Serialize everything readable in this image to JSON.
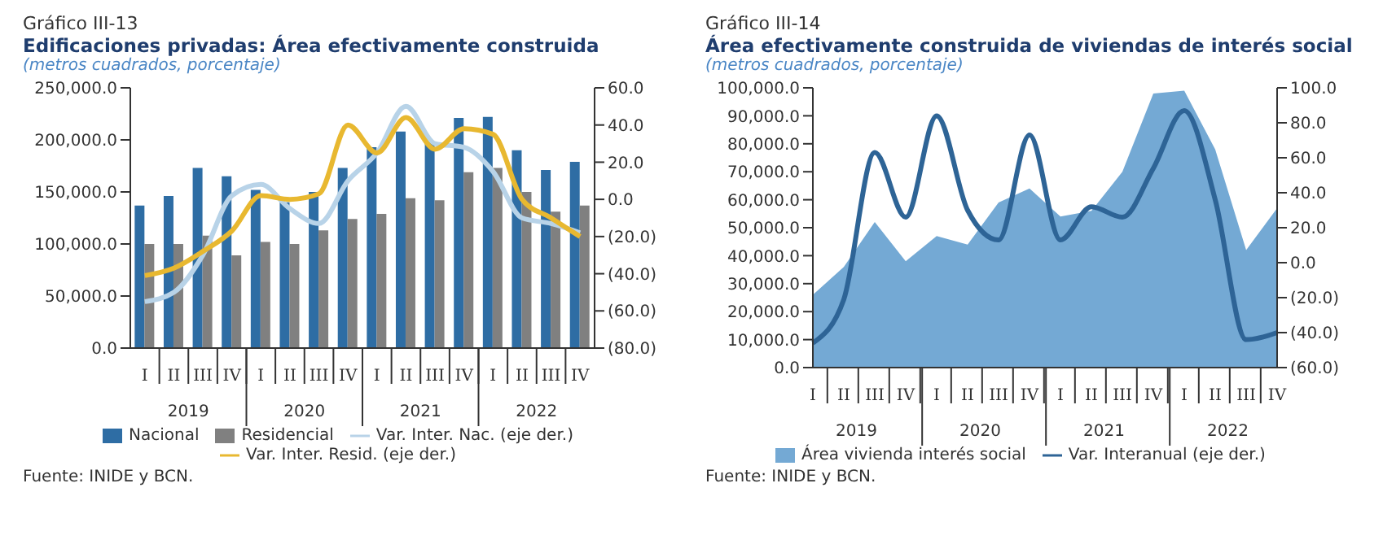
{
  "chart_data": [
    {
      "type": "bar",
      "title": "Edificaciones privadas: Área efectivamente construida",
      "subtitle": "(metros cuadrados, porcentaje)",
      "annotations": [
        "Gráfico III-13",
        "2019",
        "2020",
        "2021",
        "2022",
        "Fuente: INIDE y BCN."
      ],
      "categories": [
        "I",
        "II",
        "III",
        "IV",
        "I",
        "II",
        "III",
        "IV",
        "I",
        "II",
        "III",
        "IV",
        "I",
        "II",
        "III",
        "IV"
      ],
      "series": [
        {
          "name": "Nacional",
          "color": "#2e6da4",
          "values": [
            137000,
            146000,
            173000,
            165000,
            152000,
            140000,
            150000,
            173000,
            193000,
            208000,
            198000,
            221000,
            222000,
            190000,
            171000,
            179000
          ]
        },
        {
          "name": "Residencial",
          "color": "#808080",
          "values": [
            100000,
            100000,
            108000,
            89000,
            102000,
            100000,
            113000,
            124000,
            129000,
            144000,
            142000,
            169000,
            173000,
            150000,
            131000,
            137000
          ]
        },
        {
          "name": "Var. Inter. Nac. (eje der.)",
          "type": "line",
          "axis": "y2",
          "color": "#b8d3e8",
          "values": [
            -55,
            -50,
            -30,
            2,
            8,
            -5,
            -13,
            10,
            25,
            50,
            30,
            28,
            15,
            -10,
            -13,
            -18
          ]
        },
        {
          "name": "Var. Inter. Resid. (eje der.)",
          "type": "line",
          "axis": "y2",
          "color": "#e8b830",
          "values": [
            -41,
            -37,
            -28,
            -17,
            2,
            0,
            3,
            40,
            25,
            44,
            27,
            38,
            35,
            0,
            -10,
            -20
          ]
        }
      ],
      "ylim": [
        0,
        250000
      ],
      "yticks": [
        {
          "value": 0,
          "label": "0.0"
        },
        {
          "value": 50000,
          "label": "50,000.0"
        },
        {
          "value": 100000,
          "label": "100,000.0"
        },
        {
          "value": 150000,
          "label": "150,000.0"
        },
        {
          "value": 200000,
          "label": "200,000.0"
        },
        {
          "value": 250000,
          "label": "250,000.0"
        }
      ],
      "y2lim": [
        -80,
        60
      ],
      "y2ticks": [
        {
          "value": -80,
          "label": "(80.0)"
        },
        {
          "value": -60,
          "label": "(60.0)"
        },
        {
          "value": -40,
          "label": "(40.0)"
        },
        {
          "value": -20,
          "label": "(20.0)"
        },
        {
          "value": 0,
          "label": "0.0"
        },
        {
          "value": 20,
          "label": "20.0"
        },
        {
          "value": 40,
          "label": "40.0"
        },
        {
          "value": 60,
          "label": "60.0"
        }
      ],
      "grid": false,
      "legend": "bottom",
      "marker": "none"
    },
    {
      "type": "area",
      "title": "Área efectivamente construida de viviendas de interés social",
      "subtitle": "(metros cuadrados, porcentaje)",
      "annotations": [
        "Gráfico III-14",
        "2019",
        "2020",
        "2021",
        "2022",
        "Fuente: INIDE y BCN."
      ],
      "categories": [
        "I",
        "II",
        "III",
        "IV",
        "I",
        "II",
        "III",
        "IV",
        "I",
        "II",
        "III",
        "IV",
        "I",
        "II",
        "III",
        "IV"
      ],
      "series": [
        {
          "name": "Área vivienda interés social",
          "color": "#74a9d4",
          "values": [
            26000,
            36000,
            52000,
            38000,
            47000,
            44000,
            59000,
            64000,
            54000,
            56000,
            70000,
            98000,
            99000,
            78000,
            42000,
            57000
          ]
        },
        {
          "name": "Var. Interanual (eje der.)",
          "type": "line",
          "axis": "y2",
          "color": "#2e6496",
          "values": [
            -46,
            -21,
            63,
            26,
            84,
            30,
            13,
            73,
            13,
            32,
            26,
            54,
            87,
            36,
            -44,
            -40
          ]
        }
      ],
      "ylim": [
        0,
        100000
      ],
      "yticks": [
        {
          "value": 0,
          "label": "0.0"
        },
        {
          "value": 10000,
          "label": "10,000.0"
        },
        {
          "value": 20000,
          "label": "20,000.0"
        },
        {
          "value": 30000,
          "label": "30,000.0"
        },
        {
          "value": 40000,
          "label": "40,000.0"
        },
        {
          "value": 50000,
          "label": "50,000.0"
        },
        {
          "value": 60000,
          "label": "60,000.0"
        },
        {
          "value": 70000,
          "label": "70,000.0"
        },
        {
          "value": 80000,
          "label": "80,000.0"
        },
        {
          "value": 90000,
          "label": "90,000.0"
        },
        {
          "value": 100000,
          "label": "100,000.0"
        }
      ],
      "y2lim": [
        -60,
        100
      ],
      "y2ticks": [
        {
          "value": -60,
          "label": "(60.0)"
        },
        {
          "value": -40,
          "label": "(40.0)"
        },
        {
          "value": -20,
          "label": "(20.0)"
        },
        {
          "value": 0,
          "label": "0.0"
        },
        {
          "value": 20,
          "label": "20.0"
        },
        {
          "value": 40,
          "label": "40.0"
        },
        {
          "value": 60,
          "label": "60.0"
        },
        {
          "value": 80,
          "label": "80.0"
        },
        {
          "value": 100,
          "label": "100.0"
        }
      ],
      "grid": false,
      "legend": "bottom",
      "marker": "none"
    }
  ]
}
